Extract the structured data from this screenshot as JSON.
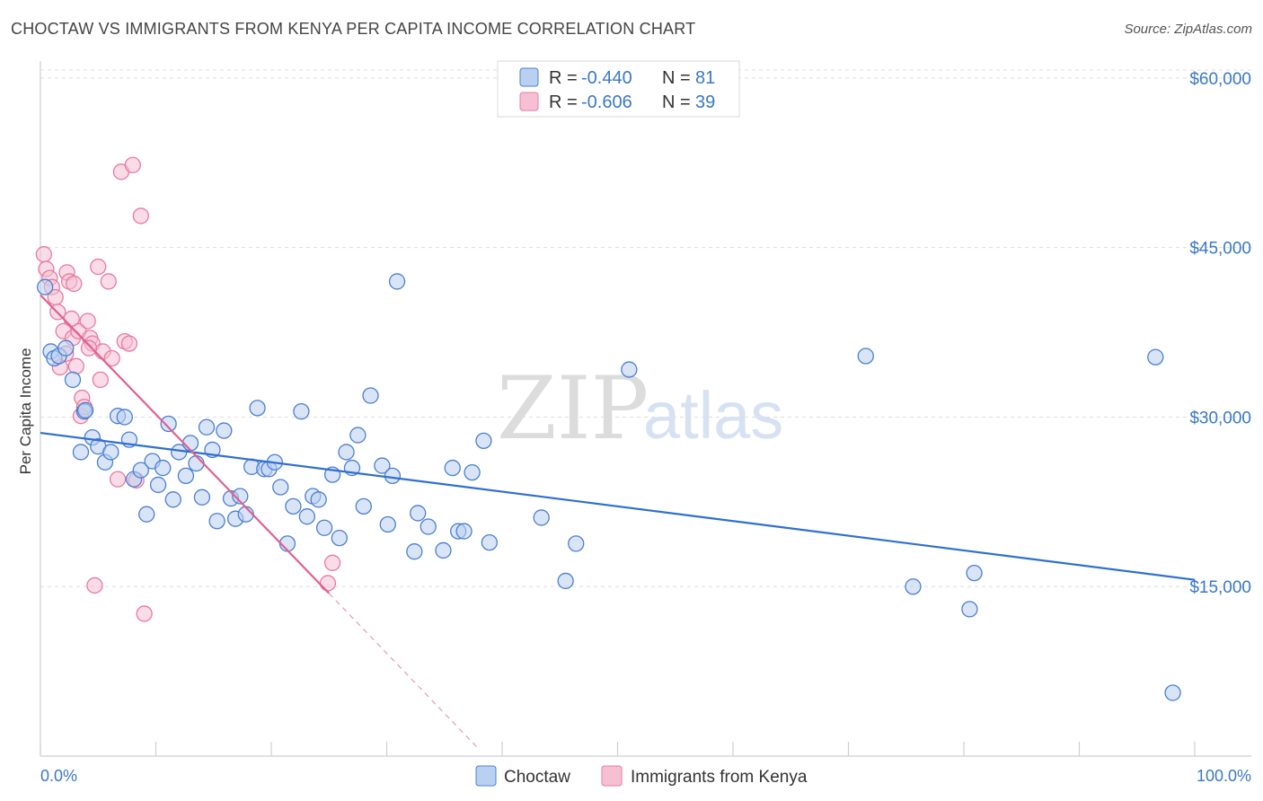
{
  "title": "CHOCTAW VS IMMIGRANTS FROM KENYA PER CAPITA INCOME CORRELATION CHART",
  "source": "Source: ZipAtlas.com",
  "watermark": {
    "part1": "ZIP",
    "part2": "atlas"
  },
  "colors": {
    "blue": "#4a7fd4",
    "blue_fill": "#b9d0f0",
    "blue_line": "#2f6fd0",
    "pink": "#e87aa0",
    "pink_fill": "#f6c0d2",
    "pink_line": "#e0608e",
    "grid": "#dddddd",
    "tick_text": "#3a78c8"
  },
  "legend": {
    "rows": [
      {
        "r_label": "R =",
        "r_value": "-0.440",
        "n_label": "N =",
        "n_value": "81"
      },
      {
        "r_label": "R =",
        "r_value": "-0.606",
        "n_label": "N =",
        "n_value": "39"
      }
    ]
  },
  "chart_data": {
    "type": "scatter",
    "title": "CHOCTAW VS IMMIGRANTS FROM KENYA PER CAPITA INCOME CORRELATION CHART",
    "xlabel": "",
    "ylabel": "Per Capita Income",
    "xlim": [
      0,
      100
    ],
    "ylim": [
      0,
      61500
    ],
    "x_tick_labels": [
      "0.0%",
      "100.0%"
    ],
    "y_ticks": [
      15000,
      30000,
      45000,
      60000
    ],
    "y_tick_labels": [
      "$15,000",
      "$30,000",
      "$45,000",
      "$60,000"
    ],
    "grid": true,
    "legend_position": "top-center",
    "series": [
      {
        "name": "Choctaw",
        "r": -0.44,
        "n": 81,
        "trend": {
          "x0": 0,
          "y0": 28600,
          "x1": 100,
          "y1": 15600
        },
        "points": [
          [
            0.4,
            41500
          ],
          [
            0.9,
            35800
          ],
          [
            1.2,
            35200
          ],
          [
            1.6,
            35400
          ],
          [
            2.2,
            36100
          ],
          [
            2.8,
            33300
          ],
          [
            3.5,
            26900
          ],
          [
            3.8,
            30500
          ],
          [
            4.5,
            28200
          ],
          [
            5.0,
            27400
          ],
          [
            5.6,
            26000
          ],
          [
            6.1,
            26900
          ],
          [
            6.7,
            30100
          ],
          [
            7.3,
            30000
          ],
          [
            7.7,
            28000
          ],
          [
            8.1,
            24500
          ],
          [
            8.7,
            25300
          ],
          [
            9.2,
            21400
          ],
          [
            9.7,
            26100
          ],
          [
            10.2,
            24000
          ],
          [
            10.6,
            25500
          ],
          [
            11.1,
            29400
          ],
          [
            11.5,
            22700
          ],
          [
            12.0,
            26900
          ],
          [
            12.6,
            24800
          ],
          [
            13.0,
            27700
          ],
          [
            13.5,
            25900
          ],
          [
            14.0,
            22900
          ],
          [
            14.4,
            29100
          ],
          [
            14.9,
            27100
          ],
          [
            15.3,
            20800
          ],
          [
            15.9,
            28800
          ],
          [
            16.5,
            22800
          ],
          [
            16.9,
            21000
          ],
          [
            17.3,
            23000
          ],
          [
            17.8,
            21400
          ],
          [
            18.3,
            25600
          ],
          [
            18.8,
            30800
          ],
          [
            19.4,
            25400
          ],
          [
            19.8,
            25400
          ],
          [
            20.3,
            26000
          ],
          [
            20.8,
            23800
          ],
          [
            21.4,
            18800
          ],
          [
            21.9,
            22100
          ],
          [
            22.6,
            30500
          ],
          [
            23.1,
            21200
          ],
          [
            23.6,
            23000
          ],
          [
            24.1,
            22700
          ],
          [
            24.6,
            20200
          ],
          [
            25.3,
            24900
          ],
          [
            25.9,
            19300
          ],
          [
            26.5,
            26900
          ],
          [
            27.0,
            25500
          ],
          [
            27.5,
            28400
          ],
          [
            28.0,
            22100
          ],
          [
            28.6,
            31900
          ],
          [
            29.6,
            25700
          ],
          [
            30.1,
            20500
          ],
          [
            30.5,
            24800
          ],
          [
            30.9,
            42000
          ],
          [
            32.4,
            18100
          ],
          [
            32.7,
            21500
          ],
          [
            33.6,
            20300
          ],
          [
            34.9,
            18200
          ],
          [
            35.7,
            25500
          ],
          [
            36.2,
            19900
          ],
          [
            36.7,
            19900
          ],
          [
            37.4,
            25100
          ],
          [
            38.4,
            27900
          ],
          [
            38.9,
            18900
          ],
          [
            43.4,
            21100
          ],
          [
            45.5,
            15500
          ],
          [
            46.4,
            18800
          ],
          [
            51.0,
            34200
          ],
          [
            71.5,
            35400
          ],
          [
            75.6,
            15000
          ],
          [
            80.5,
            13000
          ],
          [
            80.9,
            16200
          ],
          [
            96.6,
            35300
          ],
          [
            98.1,
            5600
          ],
          [
            3.9,
            30600
          ]
        ]
      },
      {
        "name": "Immigrants from Kenya",
        "r": -0.606,
        "n": 39,
        "trend": {
          "x0": 0,
          "y0": 40800,
          "x1": 25,
          "y1": 14400
        },
        "trend_dashed": {
          "x0": 25,
          "y0": 14400,
          "x1": 38,
          "y1": 600
        },
        "points": [
          [
            0.3,
            44400
          ],
          [
            0.5,
            43100
          ],
          [
            0.8,
            42300
          ],
          [
            1.0,
            41500
          ],
          [
            1.3,
            40600
          ],
          [
            1.5,
            39300
          ],
          [
            1.7,
            34400
          ],
          [
            2.0,
            37600
          ],
          [
            2.2,
            35600
          ],
          [
            2.3,
            42800
          ],
          [
            2.5,
            42000
          ],
          [
            2.8,
            37000
          ],
          [
            2.9,
            41800
          ],
          [
            3.1,
            34500
          ],
          [
            3.3,
            37600
          ],
          [
            3.5,
            30100
          ],
          [
            3.6,
            31700
          ],
          [
            3.8,
            30900
          ],
          [
            4.1,
            38500
          ],
          [
            4.3,
            37000
          ],
          [
            4.5,
            36500
          ],
          [
            4.7,
            15100
          ],
          [
            5.0,
            43300
          ],
          [
            5.2,
            33300
          ],
          [
            5.4,
            35800
          ],
          [
            5.9,
            42000
          ],
          [
            6.2,
            35200
          ],
          [
            6.7,
            24500
          ],
          [
            7.0,
            51700
          ],
          [
            7.3,
            36700
          ],
          [
            7.7,
            36500
          ],
          [
            8.0,
            52300
          ],
          [
            8.3,
            24400
          ],
          [
            8.7,
            47800
          ],
          [
            9.0,
            12600
          ],
          [
            24.9,
            15300
          ],
          [
            25.3,
            17100
          ],
          [
            2.7,
            38700
          ],
          [
            4.2,
            36100
          ]
        ]
      }
    ]
  },
  "bottom_legend": {
    "series1": "Choctaw",
    "series2": "Immigrants from Kenya"
  }
}
